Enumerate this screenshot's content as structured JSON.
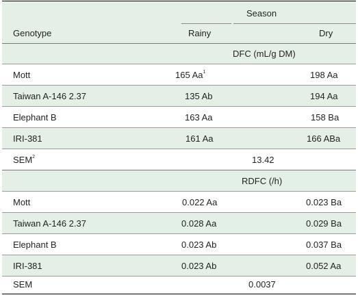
{
  "header": {
    "genotype": "Genotype",
    "season": "Season",
    "rainy": "Rainy",
    "dry": "Dry"
  },
  "sections": [
    {
      "title": "DFC (mL/g DM)",
      "rows": [
        {
          "genotype": "Mott",
          "rainy": "165 Aa",
          "rainy_sup": "1",
          "dry": "198 Aa"
        },
        {
          "genotype": "Taiwan A-146 2.37",
          "rainy": "135 Ab",
          "dry": "194 Aa"
        },
        {
          "genotype": "Elephant B",
          "rainy": "163 Aa",
          "dry": "158 Ba"
        },
        {
          "genotype": "IRI-381",
          "rainy": "161 Aa",
          "dry": "166 ABa"
        }
      ],
      "sem_label": "SEM",
      "sem_sup": "2",
      "sem_value": "13.42"
    },
    {
      "title": "RDFC (/h)",
      "rows": [
        {
          "genotype": "Mott",
          "rainy": "0.022 Aa",
          "dry": "0.023 Ba"
        },
        {
          "genotype": "Taiwan A-146 2.37",
          "rainy": "0.028 Aa",
          "dry": "0.029 Ba"
        },
        {
          "genotype": "Elephant B",
          "rainy": "0.023 Ab",
          "dry": "0.037 Ba"
        },
        {
          "genotype": "IRI-381",
          "rainy": "0.023 Ab",
          "dry": "0.052 Aa"
        }
      ],
      "sem_label": "SEM",
      "sem_value": "0.0037"
    }
  ]
}
